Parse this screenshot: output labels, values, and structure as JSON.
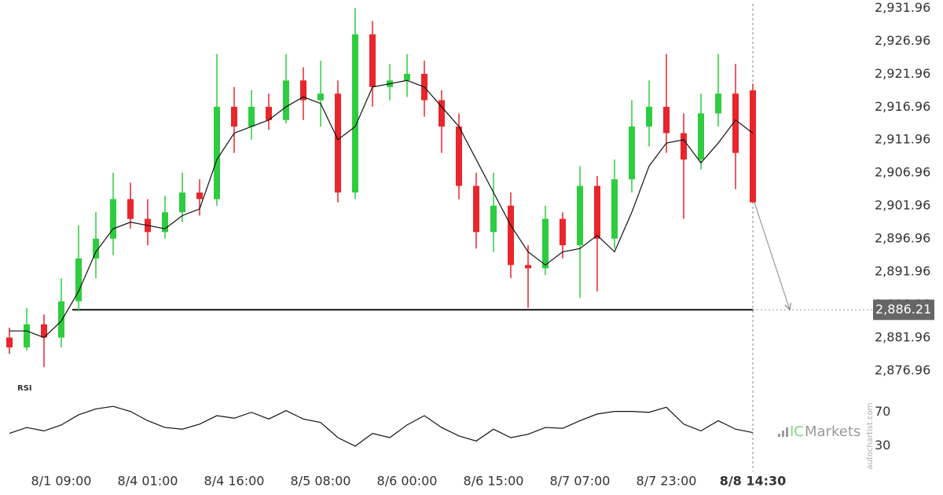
{
  "chart_data": {
    "type": "candlestick",
    "open": [
      2882,
      2880.5,
      2884,
      2882,
      2887.5,
      2894,
      2897,
      2903,
      2900,
      2898,
      2901,
      2904,
      2903,
      2917,
      2914,
      2917,
      2915,
      2921,
      2918,
      2919,
      2904,
      2928,
      2920,
      2921,
      2922,
      2918,
      2914,
      2905,
      2898,
      2902,
      2893,
      2892.5,
      2900,
      2896,
      2905,
      2897,
      2906,
      2914,
      2917,
      2913,
      2909,
      2916,
      2919,
      2919.5
    ],
    "high": [
      2883.5,
      2886.5,
      2885.5,
      2891,
      2899,
      2901,
      2907,
      2905.5,
      2903,
      2903.5,
      2907,
      2906,
      2925,
      2920,
      2919.5,
      2919,
      2925,
      2923,
      2924,
      2921,
      2932,
      2930,
      2923.5,
      2925,
      2924,
      2919.5,
      2916,
      2907,
      2907,
      2904,
      2896,
      2902,
      2901,
      2908,
      2906.5,
      2909,
      2918,
      2921,
      2925,
      2916,
      2919,
      2925,
      2923.5,
      2920.5
    ],
    "low": [
      2879.5,
      2880,
      2877.5,
      2880.5,
      2886,
      2891,
      2894.5,
      2898.5,
      2896,
      2897,
      2899.5,
      2900.5,
      2902,
      2910,
      2912,
      2913.5,
      2914.5,
      2915,
      2914,
      2902.5,
      2903,
      2917,
      2918,
      2918.5,
      2915.5,
      2910,
      2903,
      2895.5,
      2895,
      2891,
      2886.5,
      2891.5,
      2894,
      2888,
      2889,
      2895.5,
      2904,
      2911,
      2910,
      2900,
      2907.5,
      2914,
      2904.5,
      2902.5
    ],
    "close": [
      2880.5,
      2884,
      2882,
      2887.5,
      2894,
      2897,
      2903,
      2900,
      2898,
      2901,
      2904,
      2903,
      2917,
      2914,
      2917,
      2915,
      2921,
      2918,
      2919,
      2904,
      2928,
      2920,
      2921,
      2922,
      2918,
      2914,
      2905,
      2898,
      2902,
      2893,
      2892.5,
      2900,
      2896,
      2905,
      2897,
      2906,
      2914,
      2917,
      2913,
      2909,
      2916,
      2919,
      2910,
      2902.5
    ],
    "up_color": "#2ecc40",
    "down_color": "#e8262b",
    "moving_average": {
      "color": "#111111",
      "values": [
        2883,
        2883,
        2882,
        2884.5,
        2889,
        2895,
        2898.5,
        2899.5,
        2899,
        2898.5,
        2900.5,
        2901.5,
        2909,
        2913,
        2914,
        2915,
        2917,
        2918.5,
        2917.5,
        2912,
        2914,
        2920,
        2920.5,
        2921,
        2920,
        2917,
        2914,
        2909,
        2904,
        2899,
        2895,
        2893,
        2895,
        2895.5,
        2897.5,
        2895,
        2901,
        2908,
        2911.5,
        2912,
        2908.5,
        2911.5,
        2915,
        2913
      ]
    },
    "ylim": [
      2874.8,
      2933.2
    ],
    "yticks": [
      {
        "value": 2876.96,
        "label": "2,876.96"
      },
      {
        "value": 2881.96,
        "label": "2,881.96"
      },
      {
        "value": 2886.96,
        "label": "2,886.96"
      },
      {
        "value": 2891.96,
        "label": "2,891.96"
      },
      {
        "value": 2896.96,
        "label": "2,896.96"
      },
      {
        "value": 2901.96,
        "label": "2,901.96"
      },
      {
        "value": 2906.96,
        "label": "2,906.96"
      },
      {
        "value": 2911.96,
        "label": "2,911.96"
      },
      {
        "value": 2916.96,
        "label": "2,916.96"
      },
      {
        "value": 2921.96,
        "label": "2,921.96"
      },
      {
        "value": 2926.96,
        "label": "2,926.96"
      },
      {
        "value": 2931.96,
        "label": "2,931.96"
      }
    ],
    "xticks": [
      {
        "value": 3,
        "label": "8/1 09:00"
      },
      {
        "value": 8,
        "label": "8/4 01:00"
      },
      {
        "value": 13,
        "label": "8/4 16:00"
      },
      {
        "value": 18,
        "label": "8/5 08:00"
      },
      {
        "value": 23,
        "label": "8/6 00:00"
      },
      {
        "value": 28,
        "label": "8/6 15:00"
      },
      {
        "value": 33,
        "label": "8/7 07:00"
      },
      {
        "value": 38,
        "label": "8/7 23:00"
      },
      {
        "value": 43,
        "label": "8/8 14:30"
      }
    ],
    "level": {
      "value": 2886.21,
      "label": "2,886.21"
    },
    "rsi": {
      "label": "RSI",
      "ylim": [
        0,
        93
      ],
      "yticks": [
        30,
        70
      ],
      "values": [
        45,
        52,
        48,
        55,
        67,
        74,
        77,
        71,
        60,
        52,
        50,
        56,
        66,
        63,
        70,
        62,
        72,
        62,
        58,
        40,
        30,
        45,
        40,
        55,
        66,
        52,
        42,
        36,
        50,
        40,
        44,
        52,
        51,
        60,
        68,
        71,
        71,
        70,
        76,
        56,
        48,
        60,
        50,
        46
      ]
    },
    "brand": [
      "IC",
      "Markets"
    ],
    "source": "autochartist.com"
  }
}
